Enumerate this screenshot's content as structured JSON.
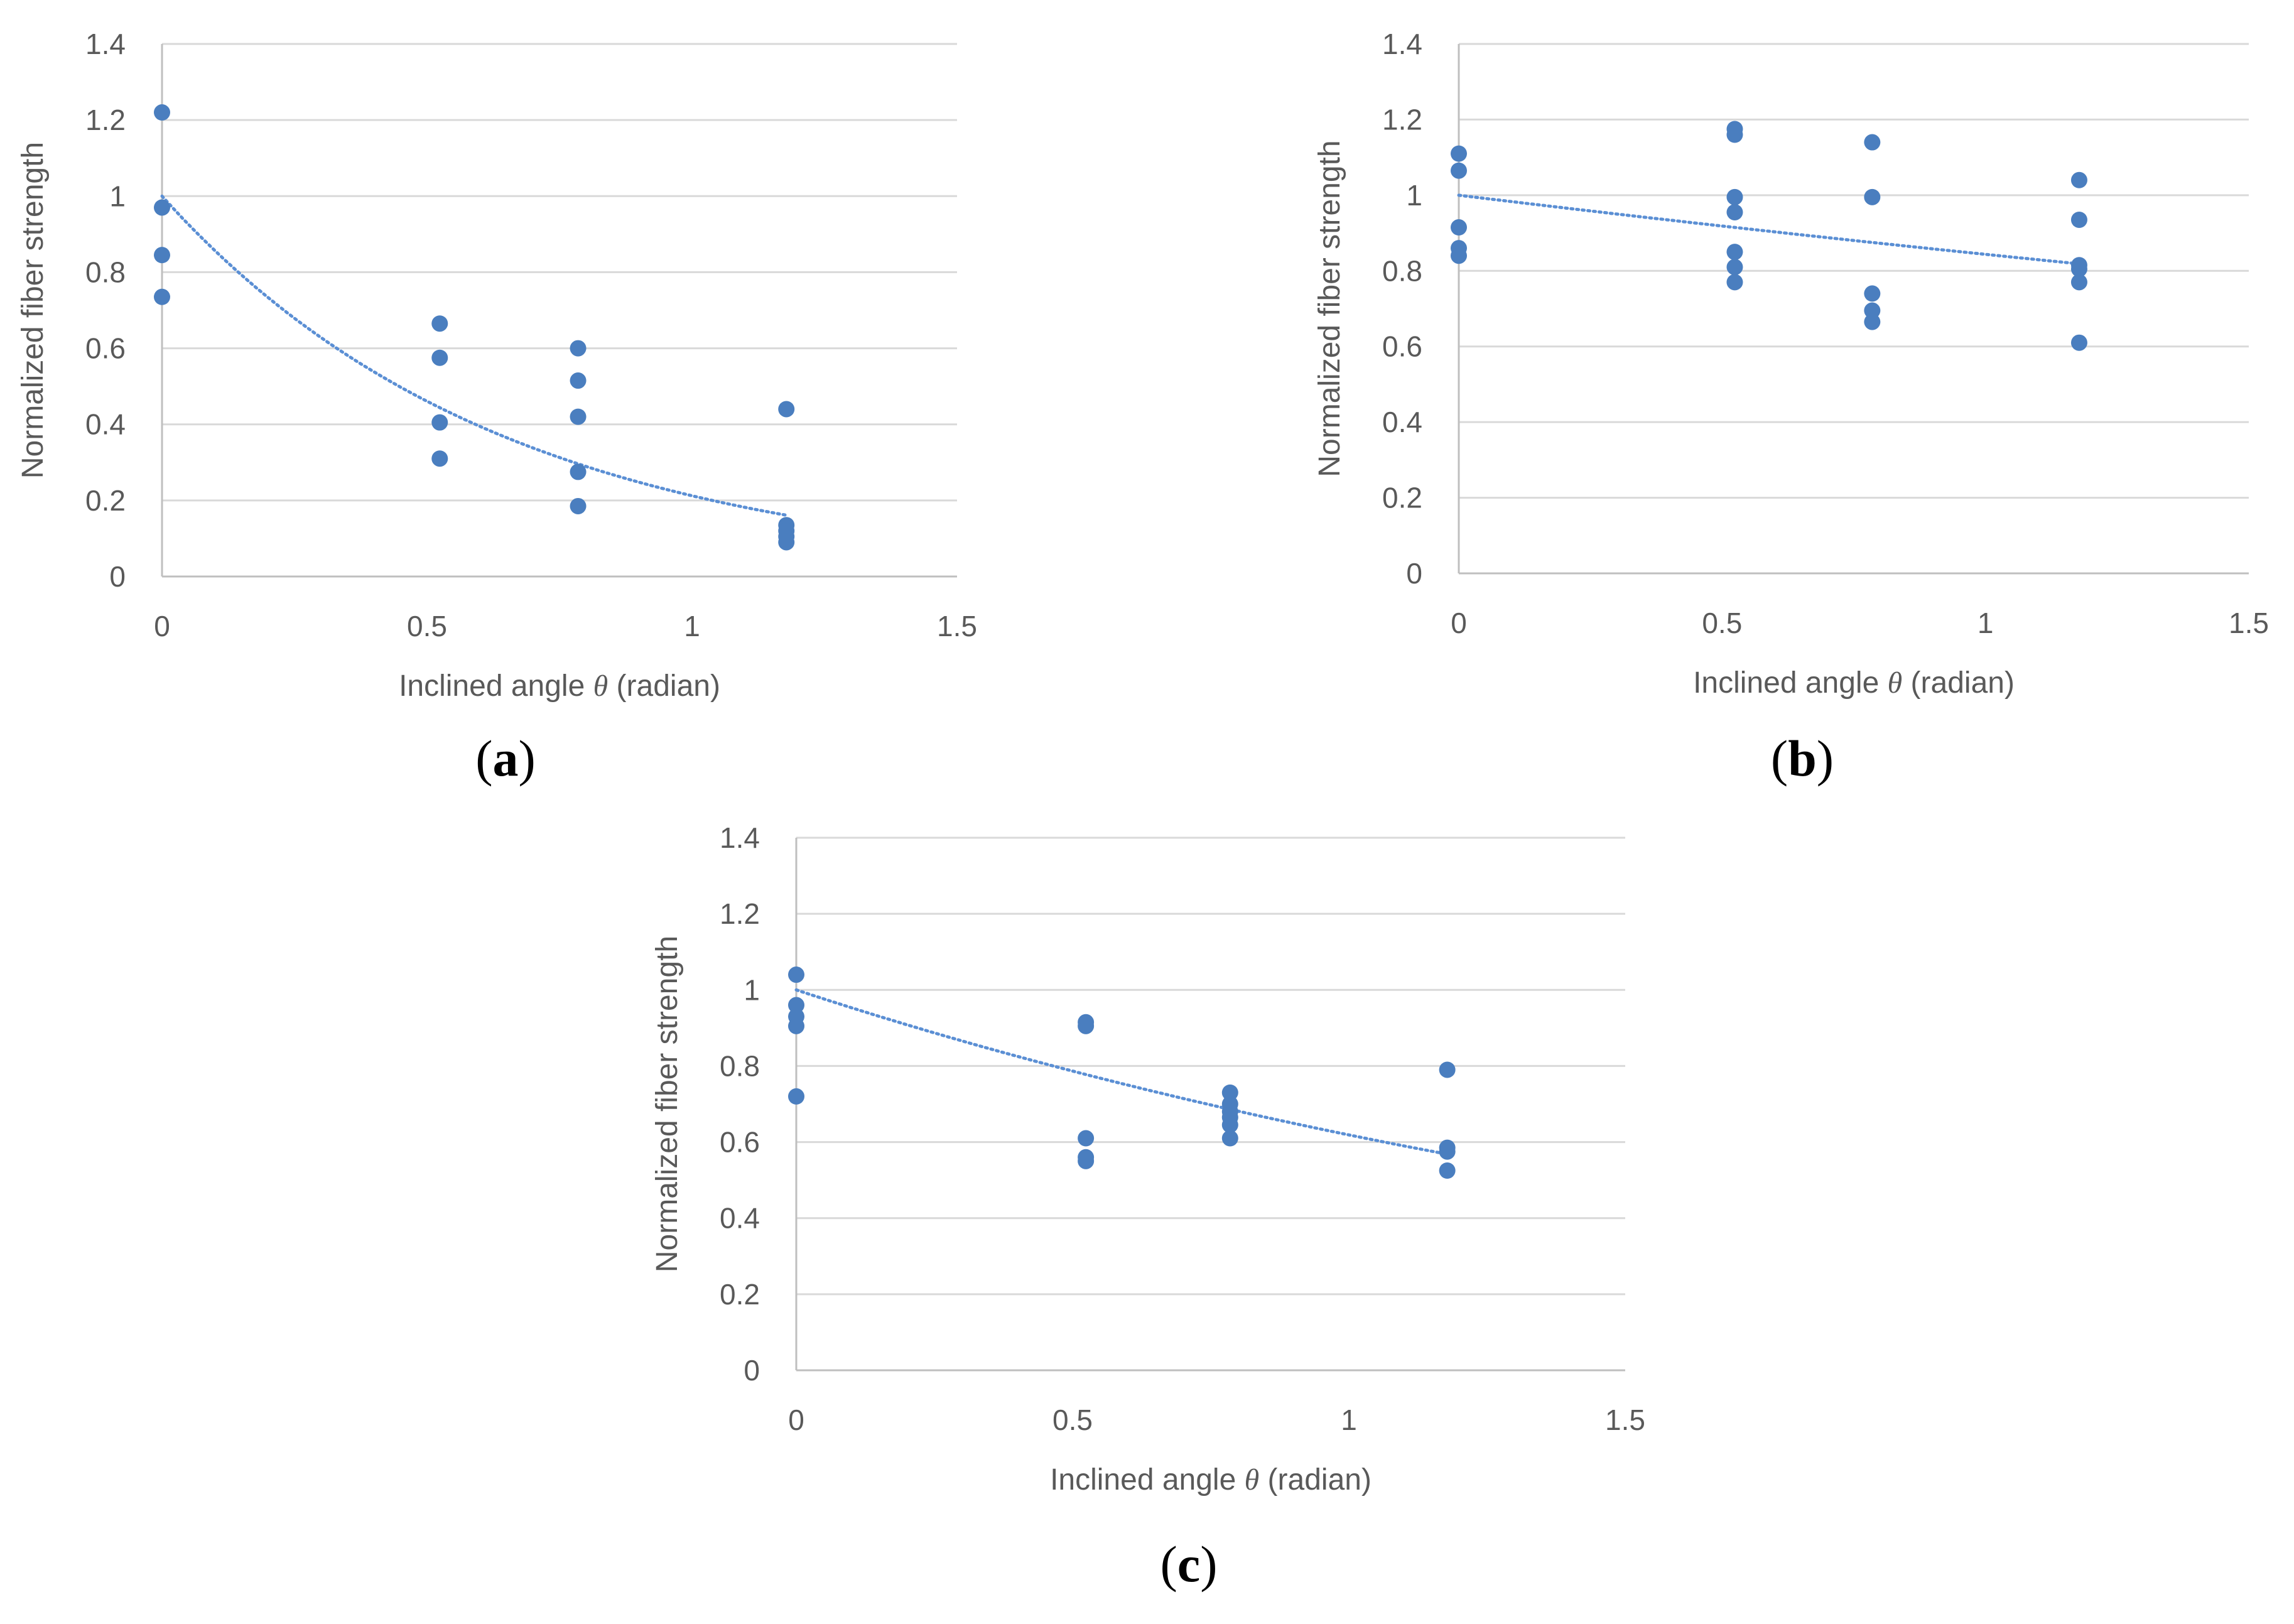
{
  "colors": {
    "marker": "#4a7ebf",
    "trendline": "#5b8fd4",
    "grid": "#d9d9d9",
    "axis": "#bfbfbf",
    "text": "#595959"
  },
  "chart_data": [
    {
      "type": "scatter",
      "panel_label": "a",
      "title": "",
      "xlabel_prefix": "Inclined angle ",
      "xlabel_symbol": "θ",
      "xlabel_suffix": " (radian)",
      "ylabel": "Normalized fiber strength",
      "xlim": [
        0,
        1.5
      ],
      "ylim": [
        0,
        1.4
      ],
      "xticks": [
        "0",
        "0.5",
        "1",
        "1.5"
      ],
      "yticks": [
        "0",
        "0.2",
        "0.4",
        "0.6",
        "0.8",
        "1",
        "1.2",
        "1.4"
      ],
      "grid": true,
      "points": [
        [
          0,
          1.22
        ],
        [
          0,
          0.97
        ],
        [
          0,
          0.845
        ],
        [
          0,
          0.735
        ],
        [
          0.524,
          0.665
        ],
        [
          0.524,
          0.575
        ],
        [
          0.524,
          0.405
        ],
        [
          0.524,
          0.31
        ],
        [
          0.785,
          0.6
        ],
        [
          0.785,
          0.515
        ],
        [
          0.785,
          0.42
        ],
        [
          0.785,
          0.275
        ],
        [
          0.785,
          0.185
        ],
        [
          1.178,
          0.44
        ],
        [
          1.178,
          0.135
        ],
        [
          1.178,
          0.12
        ],
        [
          1.178,
          0.105
        ],
        [
          1.178,
          0.09
        ]
      ],
      "trendline": {
        "kind": "exponential",
        "a": 1.0,
        "b": -1.55,
        "x_range": [
          0,
          1.178
        ]
      }
    },
    {
      "type": "scatter",
      "panel_label": "b",
      "title": "",
      "xlabel_prefix": "Inclined angle ",
      "xlabel_symbol": "θ",
      "xlabel_suffix": " (radian)",
      "ylabel": "Normalized fiber strength",
      "xlim": [
        0,
        1.5
      ],
      "ylim": [
        0,
        1.4
      ],
      "xticks": [
        "0",
        "0.5",
        "1",
        "1.5"
      ],
      "yticks": [
        "0",
        "0.2",
        "0.4",
        "0.6",
        "0.8",
        "1",
        "1.2",
        "1.4"
      ],
      "grid": true,
      "points": [
        [
          0,
          1.11
        ],
        [
          0,
          1.065
        ],
        [
          0,
          0.915
        ],
        [
          0,
          0.86
        ],
        [
          0,
          0.84
        ],
        [
          0.524,
          1.175
        ],
        [
          0.524,
          1.16
        ],
        [
          0.524,
          0.995
        ],
        [
          0.524,
          0.955
        ],
        [
          0.524,
          0.85
        ],
        [
          0.524,
          0.81
        ],
        [
          0.524,
          0.77
        ],
        [
          0.785,
          1.14
        ],
        [
          0.785,
          0.995
        ],
        [
          0.785,
          0.74
        ],
        [
          0.785,
          0.695
        ],
        [
          0.785,
          0.665
        ],
        [
          1.178,
          1.04
        ],
        [
          1.178,
          0.935
        ],
        [
          1.178,
          0.815
        ],
        [
          1.178,
          0.805
        ],
        [
          1.178,
          0.77
        ],
        [
          1.178,
          0.61
        ]
      ],
      "trendline": {
        "kind": "exponential",
        "a": 1.0,
        "b": -0.17,
        "x_range": [
          0,
          1.178
        ]
      }
    },
    {
      "type": "scatter",
      "panel_label": "c",
      "title": "",
      "xlabel_prefix": "Inclined angle ",
      "xlabel_symbol": "θ",
      "xlabel_suffix": " (radian)",
      "ylabel": "Normalized fiber strength",
      "xlim": [
        0,
        1.5
      ],
      "ylim": [
        0,
        1.4
      ],
      "xticks": [
        "0",
        "0.5",
        "1",
        "1.5"
      ],
      "yticks": [
        "0",
        "0.2",
        "0.4",
        "0.6",
        "0.8",
        "1",
        "1.2",
        "1.4"
      ],
      "grid": true,
      "points": [
        [
          0,
          1.04
        ],
        [
          0,
          0.96
        ],
        [
          0,
          0.93
        ],
        [
          0,
          0.905
        ],
        [
          0,
          0.72
        ],
        [
          0.524,
          0.915
        ],
        [
          0.524,
          0.905
        ],
        [
          0.524,
          0.61
        ],
        [
          0.524,
          0.56
        ],
        [
          0.524,
          0.55
        ],
        [
          0.785,
          0.73
        ],
        [
          0.785,
          0.7
        ],
        [
          0.785,
          0.68
        ],
        [
          0.785,
          0.665
        ],
        [
          0.785,
          0.645
        ],
        [
          0.785,
          0.61
        ],
        [
          1.178,
          0.79
        ],
        [
          1.178,
          0.585
        ],
        [
          1.178,
          0.575
        ],
        [
          1.178,
          0.525
        ]
      ],
      "trendline": {
        "kind": "exponential",
        "a": 1.0,
        "b": -0.48,
        "x_range": [
          0,
          1.178
        ]
      }
    }
  ]
}
